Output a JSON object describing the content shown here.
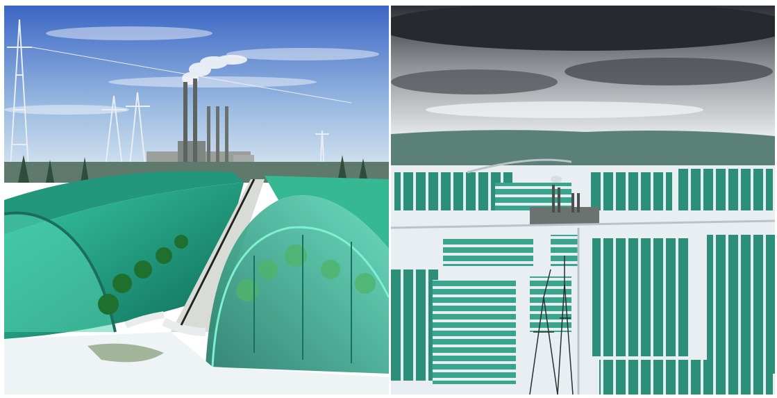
{
  "panels": [
    {
      "id": "left",
      "description_name": "greenhouse-close-view"
    },
    {
      "id": "right",
      "description_name": "greenhouse-aerial-view"
    }
  ],
  "colors": {
    "sky_left_top": "#3f6fc9",
    "sky_left_bottom": "#cfe0ef",
    "greenhouse_teal": "#2aa58a",
    "greenhouse_dark": "#0f5a48",
    "snow": "#eef3f6",
    "storm_cloud": "#3a3d42",
    "factory_grey": "#8a8f8e"
  }
}
